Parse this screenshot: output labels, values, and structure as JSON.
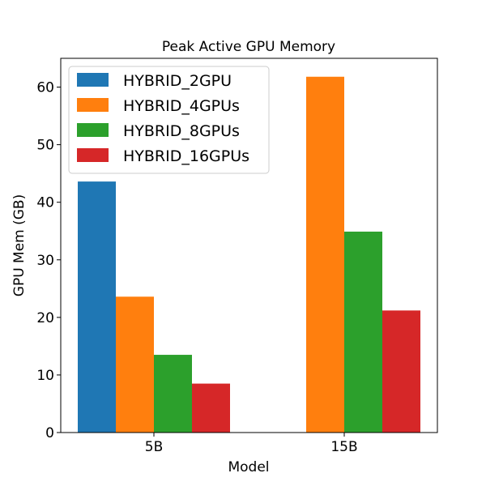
{
  "chart_data": {
    "type": "bar",
    "title": "Peak Active GPU Memory",
    "xlabel": "Model",
    "ylabel": "GPU Mem (GB)",
    "categories": [
      "5B",
      "15B"
    ],
    "ylim": [
      0,
      65
    ],
    "yticks": [
      0,
      10,
      20,
      30,
      40,
      50,
      60
    ],
    "grid": false,
    "legend_position": "top-left",
    "series": [
      {
        "name": "HYBRID_2GPU",
        "color": "#1f77b4",
        "values": [
          43.6,
          null
        ]
      },
      {
        "name": "HYBRID_4GPUs",
        "color": "#ff7f0e",
        "values": [
          23.6,
          61.8
        ]
      },
      {
        "name": "HYBRID_8GPUs",
        "color": "#2ca02c",
        "values": [
          13.5,
          34.9
        ]
      },
      {
        "name": "HYBRID_16GPUs",
        "color": "#d62728",
        "values": [
          8.5,
          21.2
        ]
      }
    ]
  }
}
